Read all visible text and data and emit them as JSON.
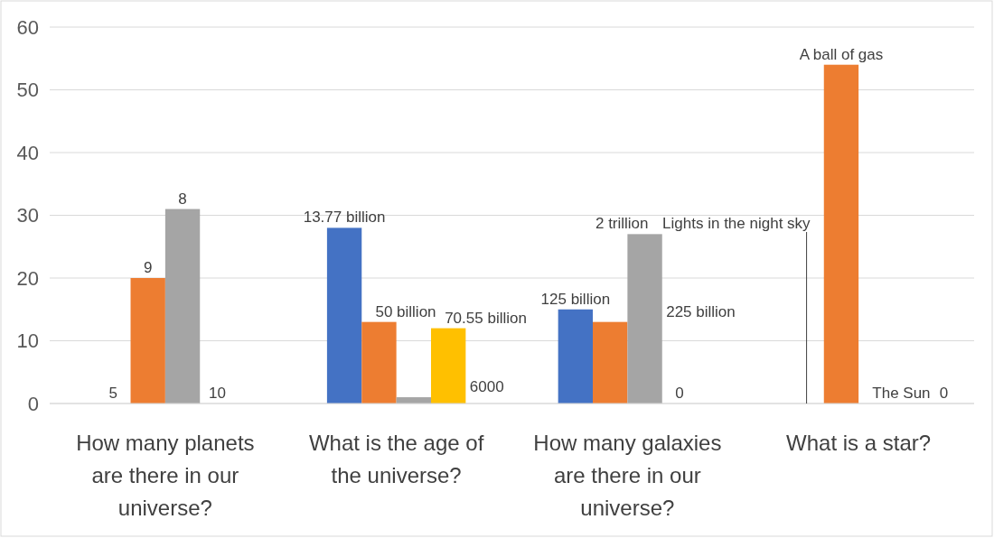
{
  "chart_data": {
    "type": "bar",
    "categories": [
      "How many planets are there in our universe?",
      "What is the age of the universe?",
      "How many galaxies are there in our universe?",
      "What is a star?"
    ],
    "series": [
      {
        "color": "#4472c4",
        "values": [
          0,
          28,
          15,
          0
        ]
      },
      {
        "color": "#ed7d31",
        "values": [
          20,
          13,
          13,
          54
        ]
      },
      {
        "color": "#a5a5a5",
        "values": [
          31,
          1,
          27,
          0
        ]
      },
      {
        "color": "#ffc000",
        "values": [
          0,
          12,
          0,
          0
        ]
      }
    ],
    "annotations": [
      "5",
      "13.77 billion",
      "125 billion",
      "Lights in the night sky",
      "9",
      "50 billion",
      "225 billion",
      "A ball of gas",
      "8",
      "6000",
      "2 trillion",
      "The Sun",
      "10",
      "70.55 billion",
      "0",
      "0"
    ],
    "ylim": [
      0,
      60
    ],
    "yticks": [
      0,
      10,
      20,
      30,
      40,
      50,
      60
    ],
    "grid": "y"
  }
}
